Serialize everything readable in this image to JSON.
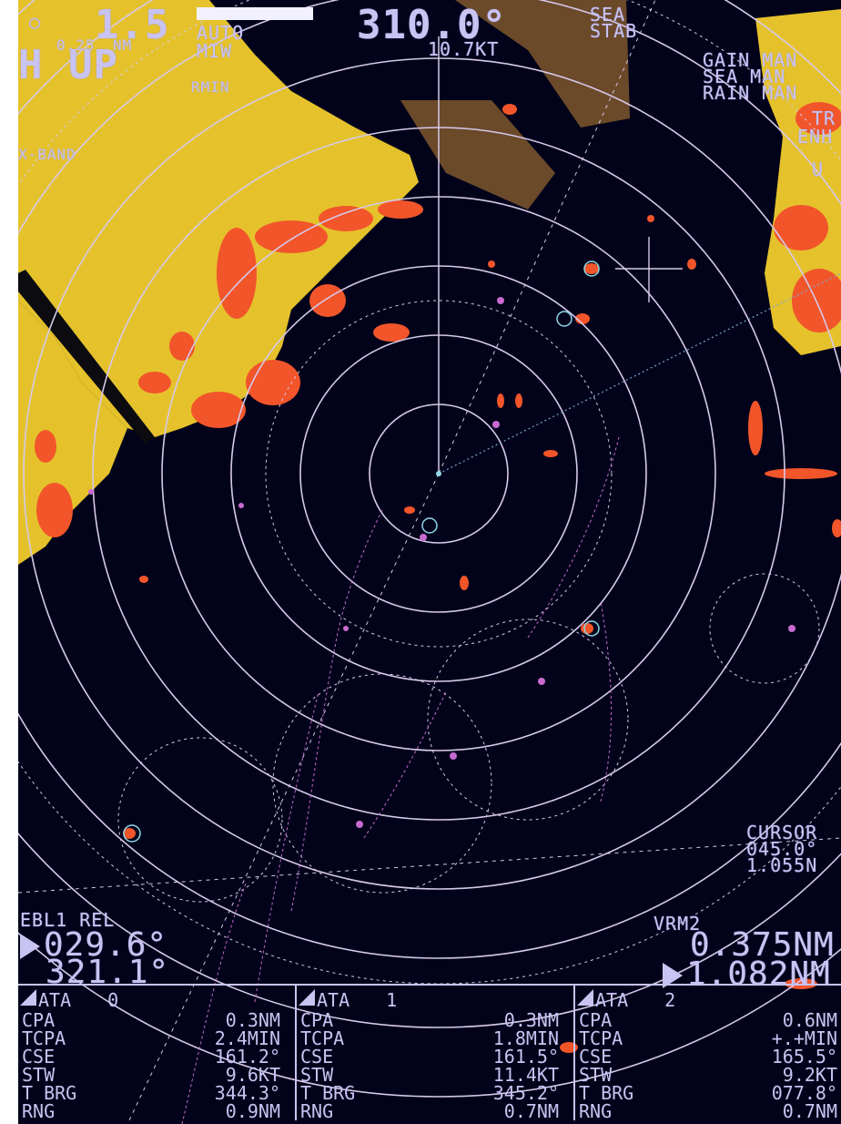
{
  "header": {
    "range_value": "1.5",
    "range_ring": "0.25",
    "range_ring_unit": "NM",
    "gain_mode": "AUTO",
    "miw": "MIW",
    "orientation": "H UP",
    "rmin": "RMIN",
    "band": "X-BAND",
    "heading": "310.0°",
    "speed": "10.7KT",
    "sea_stab_line1": "SEA",
    "sea_stab_line2": "STAB",
    "gain": "GAIN MAN",
    "sea": "SEA MAN",
    "rain": "RAIN MAN",
    "tr_partial": "TR",
    "enh_partial": "ENH",
    "u_partial": "U"
  },
  "cursor": {
    "label": "CURSOR",
    "bearing": "045.0°",
    "range": "1.055N"
  },
  "ebl": {
    "label": "EBL1 REL",
    "value1": "029.6°",
    "value2": "321.1°"
  },
  "vrm": {
    "label": "VRM2",
    "value1": "0.375NM",
    "value2": "1.082NM"
  },
  "ata_panels": [
    {
      "title": "ATA",
      "id": "0",
      "rows": [
        {
          "label": "CPA",
          "value": "0.3NM"
        },
        {
          "label": "TCPA",
          "value": "2.4MIN"
        },
        {
          "label": "CSE",
          "value": "161.2°"
        },
        {
          "label": "STW",
          "value": "9.6KT"
        },
        {
          "label": "T BRG",
          "value": "344.3°"
        },
        {
          "label": "RNG",
          "value": "0.9NM"
        }
      ]
    },
    {
      "title": "ATA",
      "id": "1",
      "rows": [
        {
          "label": "CPA",
          "value": "0.3NM"
        },
        {
          "label": "TCPA",
          "value": "1.8MIN"
        },
        {
          "label": "CSE",
          "value": "161.5°"
        },
        {
          "label": "STW",
          "value": "11.4KT"
        },
        {
          "label": "T BRG",
          "value": "345.2°"
        },
        {
          "label": "RNG",
          "value": "0.7NM"
        }
      ]
    },
    {
      "title": "ATA",
      "id": "2",
      "rows": [
        {
          "label": "CPA",
          "value": "0.6NM"
        },
        {
          "label": "TCPA",
          "value": "+.+MIN"
        },
        {
          "label": "CSE",
          "value": "165.5°"
        },
        {
          "label": "STW",
          "value": "9.2KT"
        },
        {
          "label": "T BRG",
          "value": "077.8°"
        },
        {
          "label": "RNG",
          "value": "0.7NM"
        }
      ]
    }
  ],
  "colors": {
    "background": "#02031a",
    "text": "#c9c3f2",
    "land": "#e5c22c",
    "echo": "#f2552a",
    "brown": "#6b4a2a",
    "rings": "#d6c9ea",
    "trails": "#c86ad0"
  }
}
